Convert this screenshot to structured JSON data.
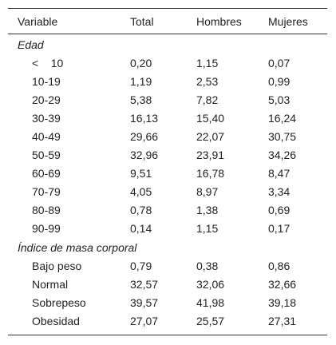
{
  "table": {
    "header": [
      "Variable",
      "Total",
      "Hombres",
      "Mujeres"
    ],
    "sections": [
      {
        "title": "Edad",
        "rows": [
          [
            "<    10",
            "0,20",
            "1,15",
            "0,07"
          ],
          [
            "10-19",
            "1,19",
            "2,53",
            "0,99"
          ],
          [
            "20-29",
            "5,38",
            "7,82",
            "5,03"
          ],
          [
            "30-39",
            "16,13",
            "15,40",
            "16,24"
          ],
          [
            "40-49",
            "29,66",
            "22,07",
            "30,75"
          ],
          [
            "50-59",
            "32,96",
            "23,91",
            "34,26"
          ],
          [
            "60-69",
            "9,51",
            "16,78",
            "8,47"
          ],
          [
            "70-79",
            "4,05",
            "8,97",
            "3,34"
          ],
          [
            "80-89",
            "0,78",
            "1,38",
            "0,69"
          ],
          [
            "90-99",
            "0,14",
            "1,15",
            "0,17"
          ]
        ]
      },
      {
        "title": "Índice de masa corporal",
        "rows": [
          [
            "Bajo peso",
            "0,79",
            "0,38",
            "0,86"
          ],
          [
            "Normal",
            "32,57",
            "32,06",
            "32,66"
          ],
          [
            "Sobrepeso",
            "39,57",
            "41,98",
            "39,18"
          ],
          [
            "Obesidad",
            "27,07",
            "25,57",
            "27,31"
          ]
        ]
      }
    ]
  }
}
